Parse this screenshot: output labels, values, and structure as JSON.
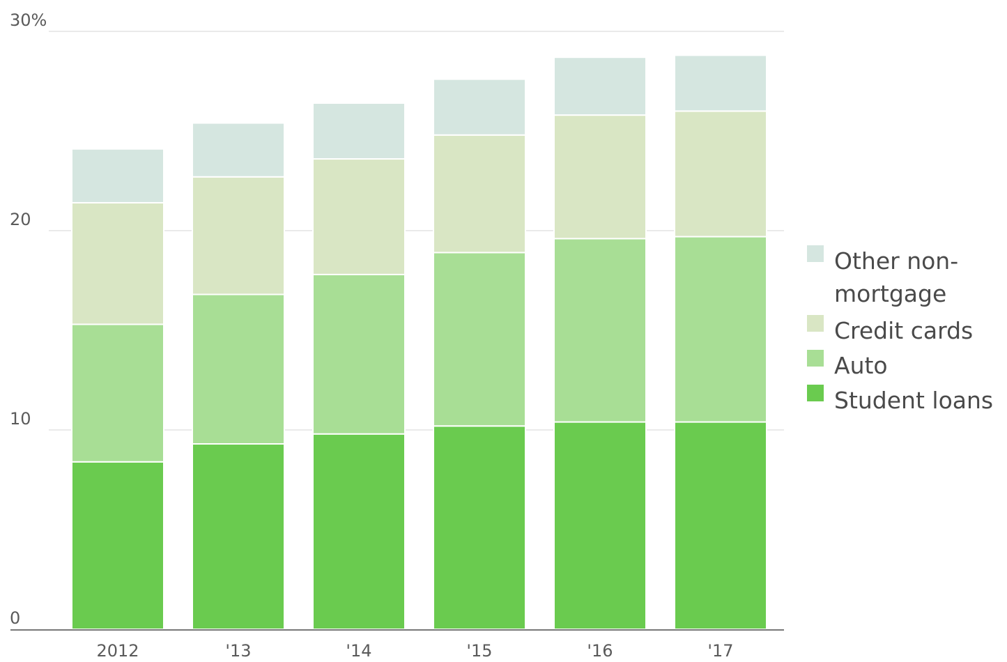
{
  "chart_data": {
    "type": "bar",
    "stacked": true,
    "categories": [
      "2012",
      "'13",
      "'14",
      "'15",
      "'16",
      "'17"
    ],
    "series": [
      {
        "name": "Student loans",
        "values": [
          8.4,
          9.3,
          9.8,
          10.2,
          10.4,
          10.4
        ],
        "color": "#6acb4f"
      },
      {
        "name": "Auto",
        "values": [
          6.9,
          7.5,
          8.0,
          8.7,
          9.2,
          9.3
        ],
        "color": "#a8de95"
      },
      {
        "name": "Credit cards",
        "values": [
          6.1,
          5.9,
          5.8,
          5.9,
          6.2,
          6.3
        ],
        "color": "#d9e6c4"
      },
      {
        "name": "Other non-mortgage",
        "values": [
          2.7,
          2.7,
          2.8,
          2.8,
          2.9,
          2.8
        ],
        "color": "#d5e6e0"
      }
    ],
    "yticks": [
      {
        "value": 0,
        "label": "0"
      },
      {
        "value": 10,
        "label": "10"
      },
      {
        "value": 20,
        "label": "20"
      },
      {
        "value": 30,
        "label": "30%"
      }
    ],
    "ylim": [
      0,
      30
    ],
    "grid": true,
    "legend": {
      "position": "right",
      "entries": [
        {
          "label": "Other non-mortgage",
          "lines": [
            "Other non-",
            "mortgage"
          ],
          "color": "#d5e6e0"
        },
        {
          "label": "Credit cards",
          "lines": [
            "Credit cards"
          ],
          "color": "#d9e6c4"
        },
        {
          "label": "Auto",
          "lines": [
            "Auto"
          ],
          "color": "#a8de95"
        },
        {
          "label": "Student loans",
          "lines": [
            "Student loans"
          ],
          "color": "#6acb4f"
        }
      ]
    },
    "title": "",
    "xlabel": "",
    "ylabel": ""
  }
}
